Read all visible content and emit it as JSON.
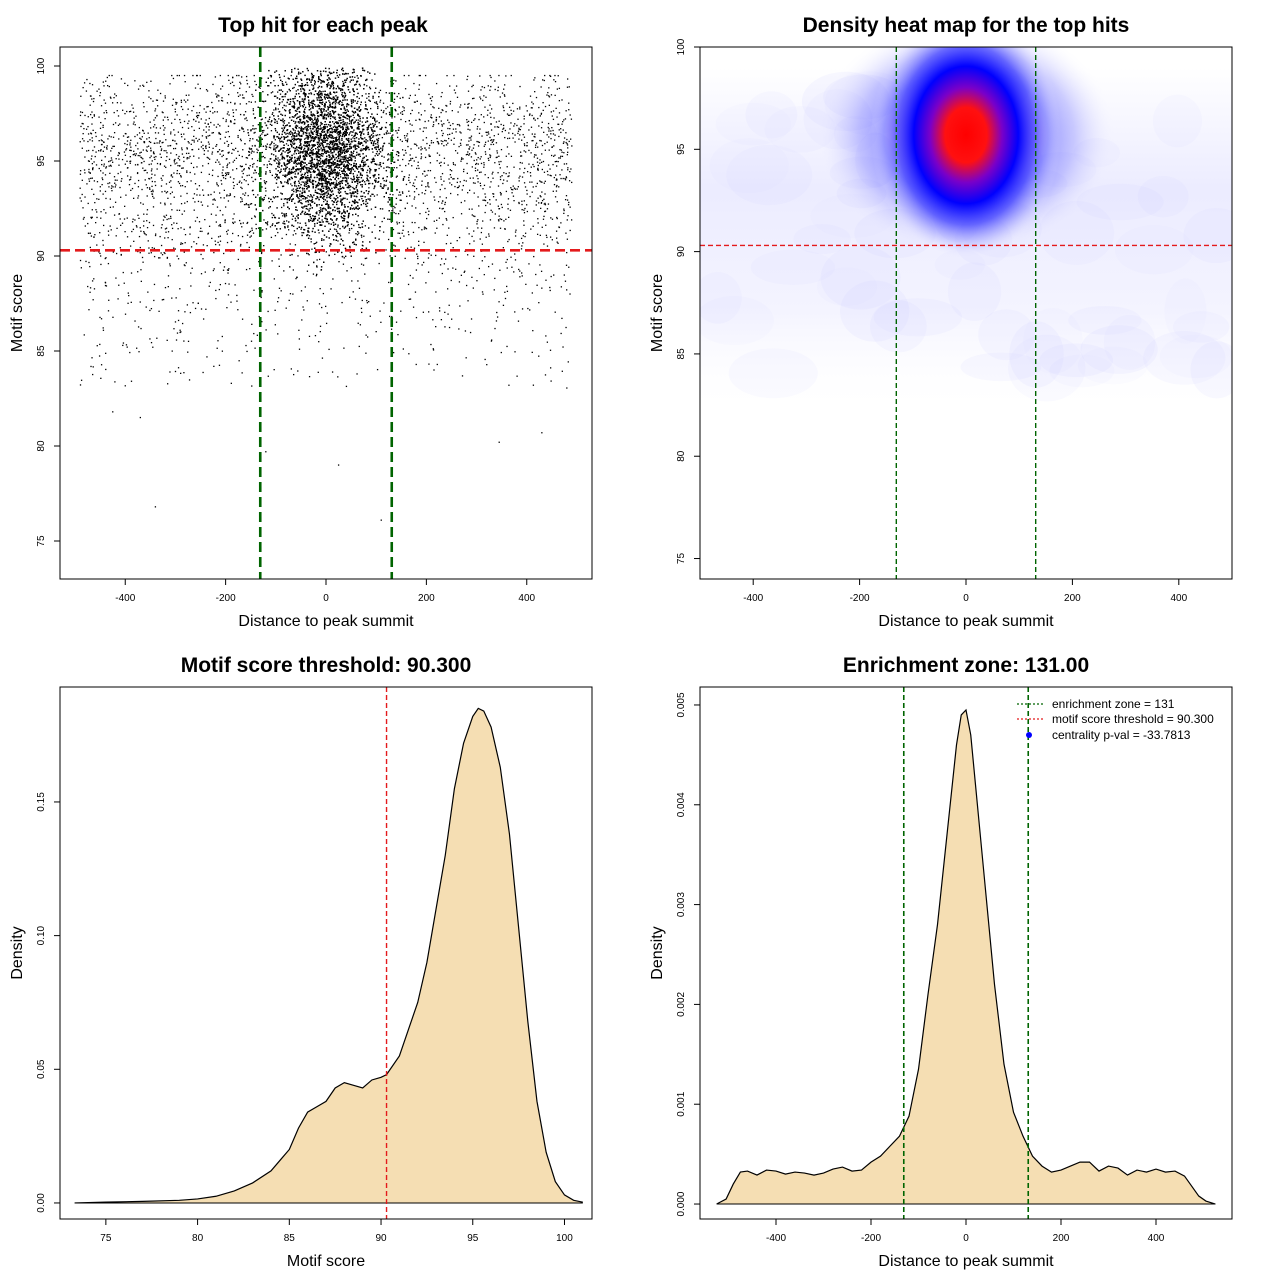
{
  "colors": {
    "points": "#000000",
    "threshold_line": "#e41a1c",
    "zone_line": "#006400",
    "density_fill": "#f5deb3",
    "heat_low": "#ffffff",
    "heat_mid": "#0000ff",
    "heat_high": "#ff0000",
    "pval_marker": "#0000ff"
  },
  "chart_data": [
    {
      "type": "scatter",
      "title": "Top hit for each peak",
      "xlabel": "Distance to peak summit",
      "ylabel": "Motif score",
      "xlim": [
        -530,
        530
      ],
      "ylim": [
        73,
        101
      ],
      "xticks": [
        -400,
        -200,
        0,
        200,
        400
      ],
      "yticks": [
        75,
        80,
        85,
        90,
        95,
        100
      ],
      "xtick_labels": [
        "-400",
        "-200",
        "0",
        "200",
        "400"
      ],
      "ytick_labels": [
        "75",
        "80",
        "85",
        "90",
        "95",
        "100"
      ],
      "hlines": [
        90.3
      ],
      "vlines": [
        -131,
        131
      ],
      "components": [
        {
          "kind": "background",
          "x_range": [
            -490,
            490
          ],
          "y_range": [
            82,
            99.5
          ],
          "approx_points": 3500
        },
        {
          "kind": "central cluster",
          "x_mean": 0,
          "x_sd": 55,
          "y_mean": 95.5,
          "y_sd": 2.2,
          "approx_points": 6000
        }
      ],
      "outliers": [
        {
          "x": -340,
          "y": 76.8
        },
        {
          "x": -120,
          "y": 79.7
        },
        {
          "x": 25,
          "y": 79.0
        },
        {
          "x": 110,
          "y": 76.1
        },
        {
          "x": 345,
          "y": 80.2
        },
        {
          "x": 430,
          "y": 80.7
        },
        {
          "x": -425,
          "y": 81.8
        },
        {
          "x": -370,
          "y": 81.5
        }
      ]
    },
    {
      "type": "heatmap",
      "title": "Density heat map for the top hits",
      "xlabel": "Distance to peak summit",
      "ylabel": "Motif score",
      "xlim": [
        -500,
        500
      ],
      "ylim": [
        74,
        100
      ],
      "xticks": [
        -400,
        -200,
        0,
        200,
        400
      ],
      "yticks": [
        75,
        80,
        85,
        90,
        95,
        100
      ],
      "xtick_labels": [
        "-400",
        "-200",
        "0",
        "200",
        "400"
      ],
      "ytick_labels": [
        "75",
        "80",
        "85",
        "90",
        "95",
        "100"
      ],
      "peak": {
        "x": 0,
        "y": 95.7
      },
      "hlines": [
        90.3
      ],
      "vlines": [
        -131,
        131
      ]
    },
    {
      "type": "area",
      "title": "Motif score threshold: 90.300",
      "xlabel": "Motif score",
      "ylabel": "Density",
      "xlim": [
        72.5,
        101.5
      ],
      "ylim": [
        -0.006,
        0.193
      ],
      "xticks": [
        75,
        80,
        85,
        90,
        95,
        100
      ],
      "yticks": [
        0.0,
        0.05,
        0.1,
        0.15
      ],
      "xtick_labels": [
        "75",
        "80",
        "85",
        "90",
        "95",
        "100"
      ],
      "ytick_labels": [
        "0.00",
        "0.05",
        "0.10",
        "0.15"
      ],
      "vlines": [
        90.3
      ],
      "x": [
        73.3,
        75,
        77,
        79,
        80,
        81,
        82,
        83,
        84,
        84.5,
        85,
        85.5,
        86,
        86.5,
        87,
        87.5,
        88,
        88.5,
        89,
        89.5,
        90,
        90.3,
        91,
        91.5,
        92,
        92.5,
        93,
        93.5,
        94,
        94.5,
        95,
        95.3,
        95.6,
        96,
        96.5,
        97,
        97.5,
        98,
        98.5,
        99,
        99.5,
        100,
        100.5,
        101
      ],
      "y": [
        0.0,
        0.0003,
        0.0006,
        0.001,
        0.0015,
        0.0025,
        0.0045,
        0.0075,
        0.012,
        0.016,
        0.02,
        0.028,
        0.034,
        0.036,
        0.038,
        0.043,
        0.045,
        0.044,
        0.043,
        0.046,
        0.047,
        0.048,
        0.055,
        0.065,
        0.075,
        0.09,
        0.11,
        0.13,
        0.155,
        0.172,
        0.182,
        0.185,
        0.184,
        0.178,
        0.163,
        0.138,
        0.103,
        0.068,
        0.038,
        0.019,
        0.008,
        0.003,
        0.001,
        0.0003
      ]
    },
    {
      "type": "area",
      "title": "Enrichment zone: 131.00",
      "xlabel": "Distance to peak summit",
      "ylabel": "Density",
      "xlim": [
        -560,
        560
      ],
      "ylim": [
        -0.00015,
        0.00518
      ],
      "xticks": [
        -400,
        -200,
        0,
        200,
        400
      ],
      "yticks": [
        0.0,
        0.001,
        0.002,
        0.003,
        0.004,
        0.005
      ],
      "xtick_labels": [
        "-400",
        "-200",
        "0",
        "200",
        "400"
      ],
      "ytick_labels": [
        "0.000",
        "0.001",
        "0.002",
        "0.003",
        "0.004",
        "0.005"
      ],
      "vlines": [
        -131,
        131
      ],
      "x": [
        -525,
        -505,
        -490,
        -475,
        -460,
        -440,
        -420,
        -400,
        -380,
        -360,
        -340,
        -320,
        -300,
        -280,
        -260,
        -240,
        -220,
        -200,
        -180,
        -160,
        -140,
        -120,
        -100,
        -80,
        -60,
        -40,
        -20,
        -10,
        0,
        10,
        20,
        40,
        60,
        80,
        100,
        120,
        140,
        160,
        180,
        200,
        220,
        240,
        260,
        280,
        300,
        320,
        340,
        360,
        380,
        400,
        420,
        440,
        460,
        475,
        490,
        505,
        525
      ],
      "y": [
        0.0,
        5e-05,
        0.0002,
        0.00032,
        0.00033,
        0.00029,
        0.00034,
        0.00033,
        0.0003,
        0.00032,
        0.00031,
        0.00029,
        0.00031,
        0.00035,
        0.00037,
        0.00033,
        0.00034,
        0.00042,
        0.00048,
        0.00058,
        0.00068,
        0.00088,
        0.00135,
        0.0021,
        0.0028,
        0.0037,
        0.0046,
        0.0049,
        0.00495,
        0.0047,
        0.0042,
        0.0032,
        0.0022,
        0.0014,
        0.00092,
        0.00068,
        0.00048,
        0.00038,
        0.00032,
        0.00034,
        0.00038,
        0.00042,
        0.00042,
        0.00033,
        0.00038,
        0.00036,
        0.00029,
        0.00034,
        0.00032,
        0.00035,
        0.00032,
        0.00033,
        0.00028,
        0.00018,
        8e-05,
        3e-05,
        0.0
      ],
      "legend": [
        {
          "label": "enrichment zone = 131",
          "style": "dotted",
          "color": "#006400"
        },
        {
          "label": "motif score threshold = 90.300",
          "style": "dotted",
          "color": "#e41a1c"
        },
        {
          "label": "centrality p-val = -33.7813",
          "style": "point",
          "color": "#0000ff"
        }
      ],
      "legend_position": "top-right"
    }
  ]
}
